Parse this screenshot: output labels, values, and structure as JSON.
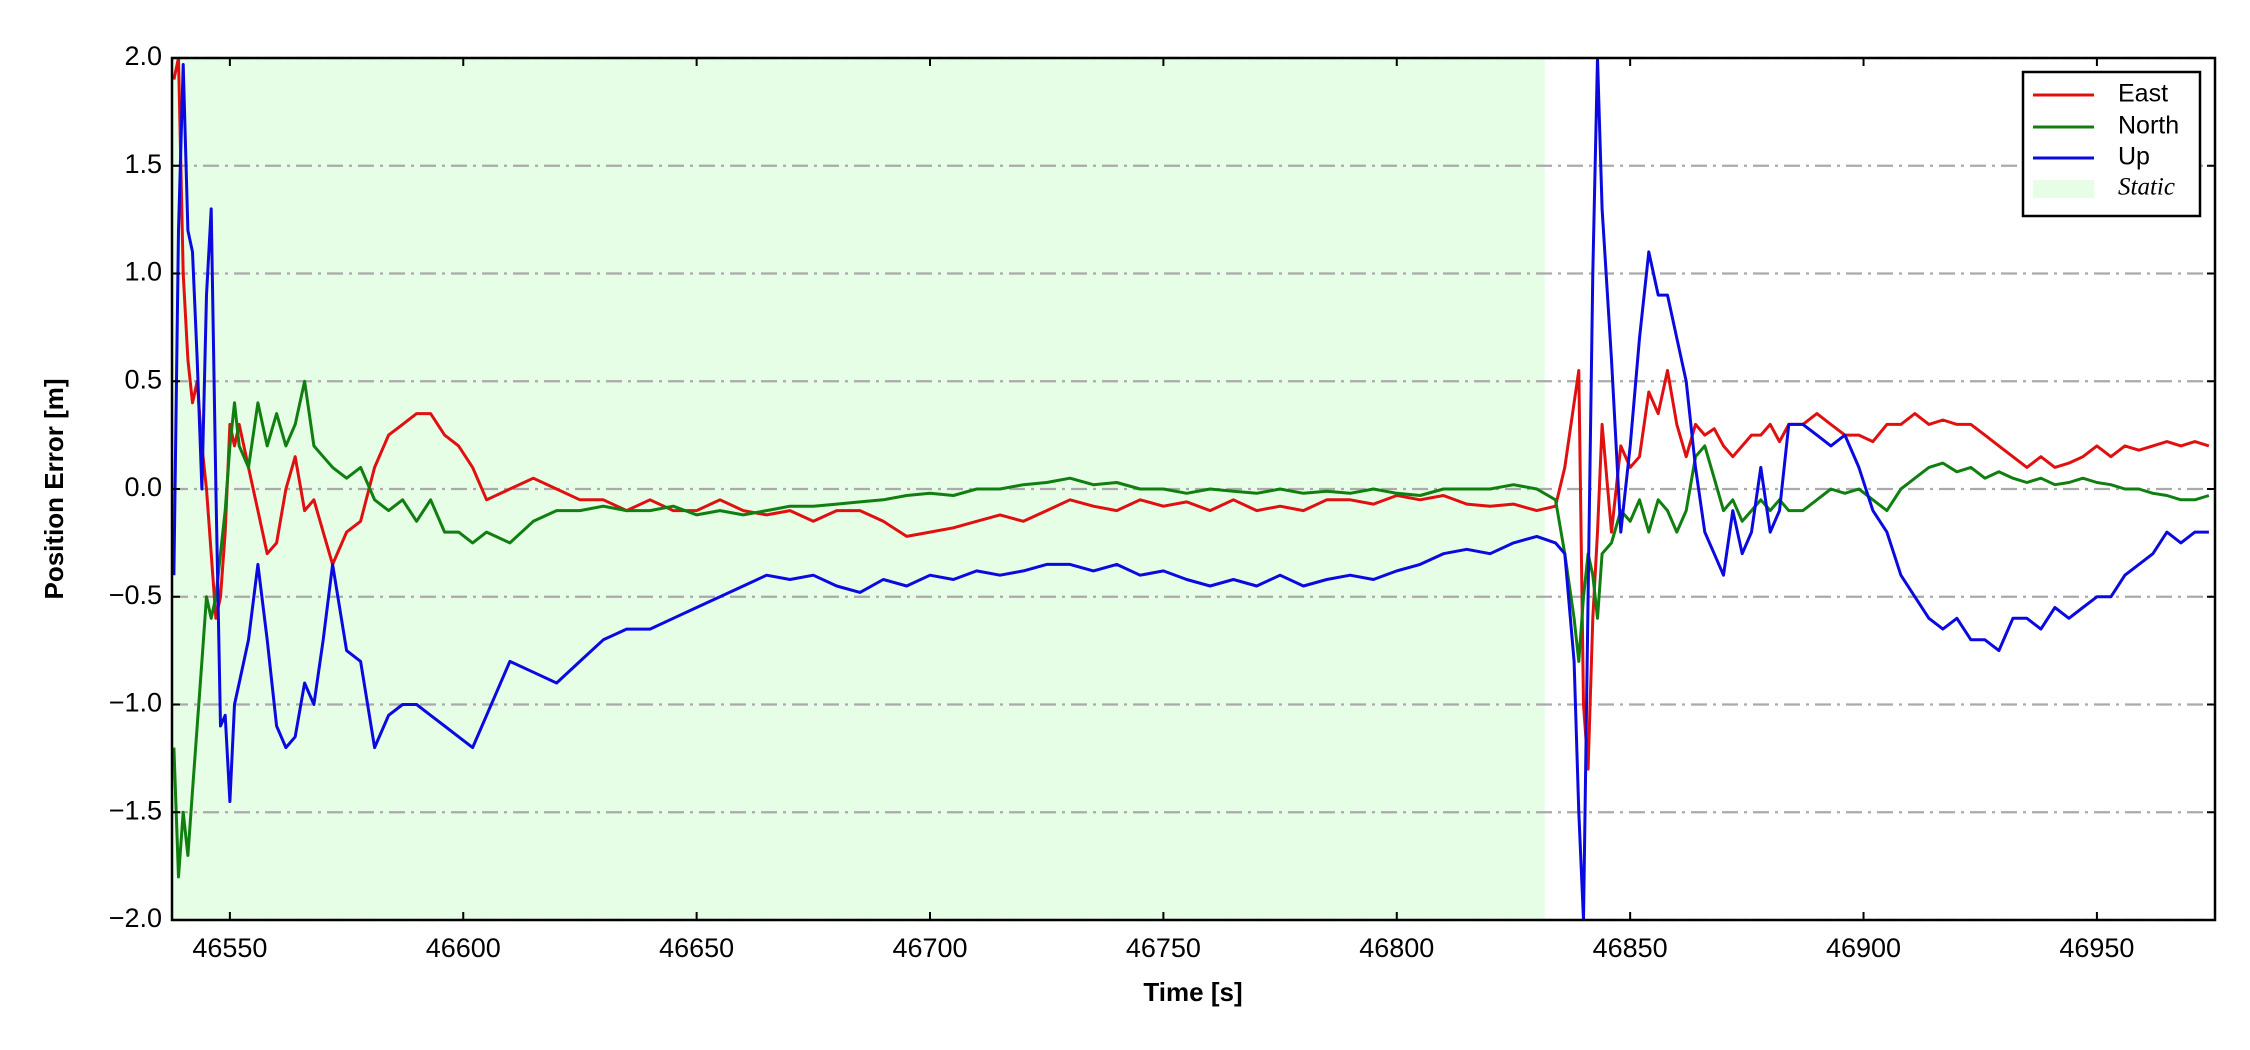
{
  "chart_data": {
    "type": "line",
    "xlabel": "Time [s]",
    "ylabel": "Position Error [m]",
    "xlim": [
      46537.6,
      46975.3
    ],
    "ylim": [
      -2,
      2
    ],
    "xticks": [
      46550,
      46600,
      46650,
      46700,
      46750,
      46800,
      46850,
      46900,
      46950
    ],
    "yticks": [
      {
        "value": -2,
        "label": "−2.0"
      },
      {
        "value": -1.5,
        "label": "−1.5"
      },
      {
        "value": -1,
        "label": "−1.0"
      },
      {
        "value": -0.5,
        "label": "−0.5"
      },
      {
        "value": 0,
        "label": "0.0"
      },
      0.5,
      {
        "value": 1,
        "label": "1.0"
      },
      1.5,
      {
        "value": 2,
        "label": "2.0"
      }
    ],
    "grid": true,
    "legend": "upper right",
    "static": {
      "name": "Static",
      "color": "#e6fde6",
      "range": [
        46537.6,
        46831.7
      ]
    },
    "x": [
      46538,
      46539,
      46540,
      46541,
      46542,
      46543,
      46544,
      46545,
      46546,
      46547,
      46548,
      46549,
      46550,
      46551,
      46552,
      46554,
      46556,
      46558,
      46560,
      46562,
      46564,
      46566,
      46568,
      46570,
      46572,
      46575,
      46578,
      46581,
      46584,
      46587,
      46590,
      46593,
      46596,
      46599,
      46602,
      46605,
      46610,
      46615,
      46620,
      46625,
      46630,
      46635,
      46640,
      46645,
      46650,
      46655,
      46660,
      46665,
      46670,
      46675,
      46680,
      46685,
      46690,
      46695,
      46700,
      46705,
      46710,
      46715,
      46720,
      46725,
      46730,
      46735,
      46740,
      46745,
      46750,
      46755,
      46760,
      46765,
      46770,
      46775,
      46780,
      46785,
      46790,
      46795,
      46800,
      46805,
      46810,
      46815,
      46820,
      46825,
      46830,
      46834,
      46836,
      46838,
      46839,
      46840,
      46841,
      46842,
      46843,
      46844,
      46846,
      46848,
      46850,
      46852,
      46854,
      46856,
      46858,
      46860,
      46862,
      46864,
      46866,
      46868,
      46870,
      46872,
      46874,
      46876,
      46878,
      46880,
      46882,
      46884,
      46887,
      46890,
      46893,
      46896,
      46899,
      46902,
      46905,
      46908,
      46911,
      46914,
      46917,
      46920,
      46923,
      46926,
      46929,
      46932,
      46935,
      46938,
      46941,
      46944,
      46947,
      46950,
      46953,
      46956,
      46959,
      46962,
      46965,
      46968,
      46971,
      46974
    ],
    "series": [
      {
        "name": "East",
        "color": "#e01010",
        "values": [
          1.9,
          2.0,
          1.0,
          0.6,
          0.4,
          0.5,
          0.2,
          0.0,
          -0.3,
          -0.6,
          -0.5,
          -0.2,
          0.3,
          0.2,
          0.3,
          0.1,
          -0.1,
          -0.3,
          -0.25,
          0.0,
          0.15,
          -0.1,
          -0.05,
          -0.2,
          -0.35,
          -0.2,
          -0.15,
          0.1,
          0.25,
          0.3,
          0.35,
          0.35,
          0.25,
          0.2,
          0.1,
          -0.05,
          0,
          0.05,
          0,
          -0.05,
          -0.05,
          -0.1,
          -0.05,
          -0.1,
          -0.1,
          -0.05,
          -0.1,
          -0.12,
          -0.1,
          -0.15,
          -0.1,
          -0.1,
          -0.15,
          -0.22,
          -0.2,
          -0.18,
          -0.15,
          -0.12,
          -0.15,
          -0.1,
          -0.05,
          -0.08,
          -0.1,
          -0.05,
          -0.08,
          -0.06,
          -0.1,
          -0.05,
          -0.1,
          -0.08,
          -0.1,
          -0.05,
          -0.05,
          -0.07,
          -0.03,
          -0.05,
          -0.03,
          -0.07,
          -0.08,
          -0.07,
          -0.1,
          -0.08,
          0.1,
          0.4,
          0.55,
          -1.0,
          -1.3,
          -0.6,
          -0.2,
          0.3,
          -0.2,
          0.2,
          0.1,
          0.15,
          0.45,
          0.35,
          0.55,
          0.3,
          0.15,
          0.3,
          0.25,
          0.28,
          0.2,
          0.15,
          0.2,
          0.25,
          0.25,
          0.3,
          0.22,
          0.3,
          0.3,
          0.35,
          0.3,
          0.25,
          0.25,
          0.22,
          0.3,
          0.3,
          0.35,
          0.3,
          0.32,
          0.3,
          0.3,
          0.25,
          0.2,
          0.15,
          0.1,
          0.15,
          0.1,
          0.12,
          0.15,
          0.2,
          0.15,
          0.2,
          0.18,
          0.2,
          0.22,
          0.2,
          0.22,
          0.2
        ]
      },
      {
        "name": "North",
        "color": "#107f10",
        "values": [
          -1.2,
          -1.8,
          -1.5,
          -1.7,
          -1.4,
          -1.1,
          -0.8,
          -0.5,
          -0.6,
          -0.5,
          -0.3,
          -0.1,
          0.2,
          0.4,
          0.2,
          0.1,
          0.4,
          0.2,
          0.35,
          0.2,
          0.3,
          0.5,
          0.2,
          0.15,
          0.1,
          0.05,
          0.1,
          -0.05,
          -0.1,
          -0.05,
          -0.15,
          -0.05,
          -0.2,
          -0.2,
          -0.25,
          -0.2,
          -0.25,
          -0.15,
          -0.1,
          -0.1,
          -0.08,
          -0.1,
          -0.1,
          -0.08,
          -0.12,
          -0.1,
          -0.12,
          -0.1,
          -0.08,
          -0.08,
          -0.07,
          -0.06,
          -0.05,
          -0.03,
          -0.02,
          -0.03,
          0.0,
          0.0,
          0.02,
          0.03,
          0.05,
          0.02,
          0.03,
          0.0,
          0.0,
          -0.02,
          0.0,
          -0.01,
          -0.02,
          0.0,
          -0.02,
          -0.01,
          -0.02,
          0.0,
          -0.02,
          -0.03,
          0.0,
          0.0,
          0.0,
          0.02,
          0.0,
          -0.05,
          -0.3,
          -0.6,
          -0.8,
          -0.5,
          -0.3,
          -0.4,
          -0.6,
          -0.3,
          -0.25,
          -0.1,
          -0.15,
          -0.05,
          -0.2,
          -0.05,
          -0.1,
          -0.2,
          -0.1,
          0.15,
          0.2,
          0.05,
          -0.1,
          -0.05,
          -0.15,
          -0.1,
          -0.05,
          -0.1,
          -0.05,
          -0.1,
          -0.1,
          -0.05,
          0.0,
          -0.02,
          0.0,
          -0.05,
          -0.1,
          0.0,
          0.05,
          0.1,
          0.12,
          0.08,
          0.1,
          0.05,
          0.08,
          0.05,
          0.03,
          0.05,
          0.02,
          0.03,
          0.05,
          0.03,
          0.02,
          0.0,
          0.0,
          -0.02,
          -0.03,
          -0.05,
          -0.05,
          -0.03
        ]
      },
      {
        "name": "Up",
        "color": "#0a0ae0",
        "values": [
          -0.4,
          1.2,
          1.97,
          1.2,
          1.1,
          0.6,
          0.0,
          0.9,
          1.3,
          0.0,
          -1.1,
          -1.05,
          -1.45,
          -1.0,
          -0.9,
          -0.7,
          -0.35,
          -0.7,
          -1.1,
          -1.2,
          -1.15,
          -0.9,
          -1.0,
          -0.7,
          -0.35,
          -0.75,
          -0.8,
          -1.2,
          -1.05,
          -1.0,
          -1.0,
          -1.05,
          -1.1,
          -1.15,
          -1.2,
          -1.05,
          -0.8,
          -0.85,
          -0.9,
          -0.8,
          -0.7,
          -0.65,
          -0.65,
          -0.6,
          -0.55,
          -0.5,
          -0.45,
          -0.4,
          -0.42,
          -0.4,
          -0.45,
          -0.48,
          -0.42,
          -0.45,
          -0.4,
          -0.42,
          -0.38,
          -0.4,
          -0.38,
          -0.35,
          -0.35,
          -0.38,
          -0.35,
          -0.4,
          -0.38,
          -0.42,
          -0.45,
          -0.42,
          -0.45,
          -0.4,
          -0.45,
          -0.42,
          -0.4,
          -0.42,
          -0.38,
          -0.35,
          -0.3,
          -0.28,
          -0.3,
          -0.25,
          -0.22,
          -0.25,
          -0.3,
          -0.8,
          -1.5,
          -2.0,
          -0.5,
          1.0,
          2.0,
          1.3,
          0.6,
          -0.2,
          0.2,
          0.7,
          1.1,
          0.9,
          0.9,
          0.7,
          0.5,
          0.1,
          -0.2,
          -0.3,
          -0.4,
          -0.1,
          -0.3,
          -0.2,
          0.1,
          -0.2,
          -0.1,
          0.3,
          0.3,
          0.25,
          0.2,
          0.25,
          0.1,
          -0.1,
          -0.2,
          -0.4,
          -0.5,
          -0.6,
          -0.65,
          -0.6,
          -0.7,
          -0.7,
          -0.75,
          -0.6,
          -0.6,
          -0.65,
          -0.55,
          -0.6,
          -0.55,
          -0.5,
          -0.5,
          -0.4,
          -0.35,
          -0.3,
          -0.2,
          -0.25,
          -0.2,
          -0.2
        ]
      }
    ]
  }
}
